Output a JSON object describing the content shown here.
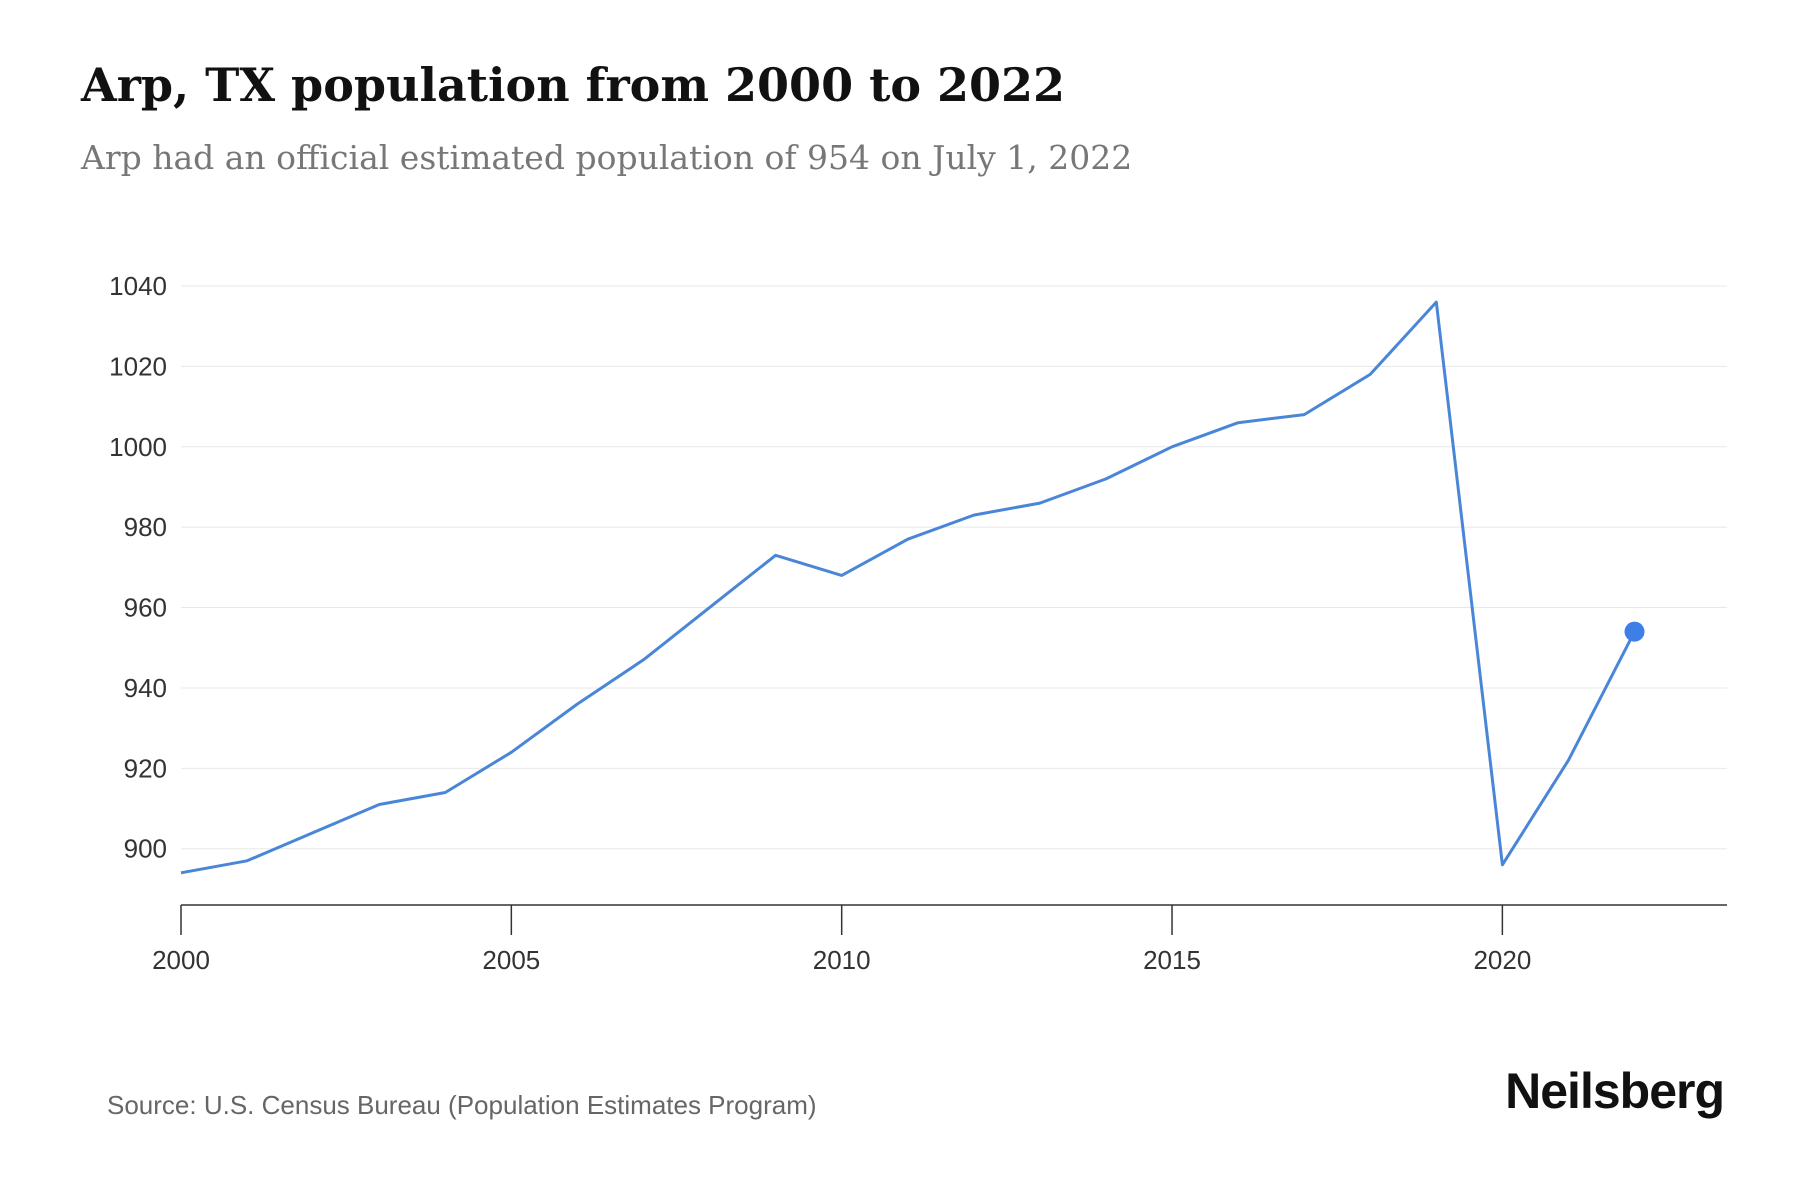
{
  "header": {
    "title": "Arp, TX population from 2000 to 2022",
    "subtitle": "Arp had an official estimated population of 954 on July 1, 2022"
  },
  "footer": {
    "source": "Source: U.S. Census Bureau (Population Estimates Program)",
    "brand": "Neilsberg"
  },
  "colors": {
    "line": "#4a86d8",
    "marker": "#3d7fe6",
    "grid": "#e8e8e8",
    "axis": "#333333"
  },
  "chart_data": {
    "type": "line",
    "title": "Arp, TX population from 2000 to 2022",
    "subtitle": "Arp had an official estimated population of 954 on July 1, 2022",
    "xlabel": "",
    "ylabel": "",
    "x": [
      2000,
      2001,
      2002,
      2003,
      2004,
      2005,
      2006,
      2007,
      2008,
      2009,
      2010,
      2011,
      2012,
      2013,
      2014,
      2015,
      2016,
      2017,
      2018,
      2019,
      2020,
      2021,
      2022
    ],
    "series": [
      {
        "values": [
          894,
          897,
          904,
          911,
          914,
          924,
          936,
          947,
          960,
          973,
          968,
          977,
          983,
          986,
          992,
          1000,
          1006,
          1008,
          1018,
          1036,
          896,
          922,
          954
        ]
      }
    ],
    "xlim": [
      2000,
      2023.4
    ],
    "ylim": [
      886,
      1040
    ],
    "x_ticks": [
      2000,
      2005,
      2010,
      2015,
      2020
    ],
    "y_ticks": [
      900,
      920,
      940,
      960,
      980,
      1000,
      1020,
      1040
    ],
    "grid": true,
    "highlight_last_point": true
  }
}
